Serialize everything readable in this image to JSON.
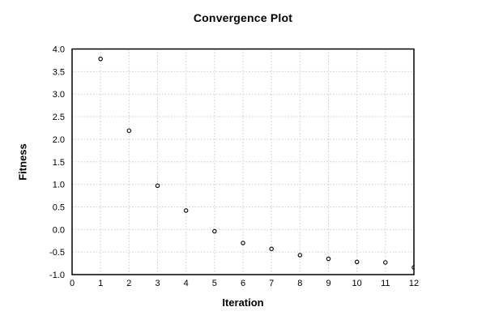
{
  "chart_data": {
    "type": "scatter",
    "title": "Convergence Plot",
    "xlabel": "Iteration",
    "ylabel": "Fitness",
    "xlim": [
      0,
      12
    ],
    "ylim": [
      -1.0,
      4.0
    ],
    "grid": true,
    "grid_style": "dotted",
    "legend": false,
    "marker_style": "open-circle",
    "x": [
      1,
      2,
      3,
      4,
      5,
      6,
      7,
      8,
      9,
      10,
      11,
      12
    ],
    "y": [
      3.78,
      2.19,
      0.97,
      0.42,
      -0.04,
      -0.3,
      -0.43,
      -0.57,
      -0.65,
      -0.72,
      -0.73,
      -0.84
    ],
    "x_tick_values": [
      0,
      1,
      2,
      3,
      4,
      5,
      6,
      7,
      8,
      9,
      10,
      11,
      12
    ],
    "x_tick_labels": [
      "0",
      "1",
      "2",
      "3",
      "4",
      "5",
      "6",
      "7",
      "8",
      "9",
      "10",
      "11",
      "12"
    ],
    "y_tick_values": [
      -1.0,
      -0.5,
      0.0,
      0.5,
      1.0,
      1.5,
      2.0,
      2.5,
      3.0,
      3.5,
      4.0
    ],
    "y_tick_labels": [
      "-1.0",
      "-0.5",
      "0.0",
      "0.5",
      "1.0",
      "1.5",
      "2.0",
      "2.5",
      "3.0",
      "3.5",
      "4.0"
    ],
    "colors": {
      "background": "#ffffff",
      "text": "#000000",
      "grid": "#c9c9c9",
      "axis_border": "#000000",
      "marker": "#000000",
      "marker_fill": "#ffffff"
    }
  }
}
